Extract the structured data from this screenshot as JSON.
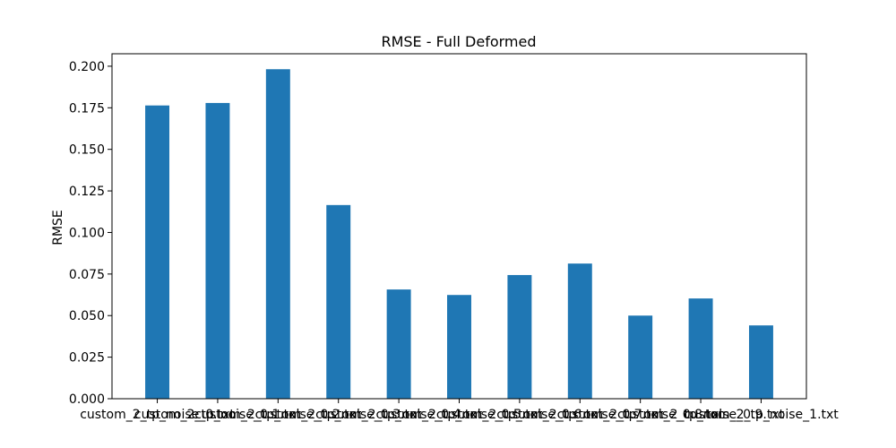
{
  "chart_data": {
    "type": "bar",
    "title": "RMSE - Full Deformed",
    "xlabel": "",
    "ylabel": "RMSE",
    "ylim": [
      0,
      0.2075
    ],
    "yticks": [
      0.0,
      0.025,
      0.05,
      0.075,
      0.1,
      0.125,
      0.15,
      0.175,
      0.2
    ],
    "ytick_labels": [
      "0.000",
      "0.025",
      "0.050",
      "0.075",
      "0.100",
      "0.125",
      "0.150",
      "0.175",
      "0.200"
    ],
    "grid": false,
    "bar_color": "#1f77b4",
    "categories": [
      "custom_2_tp_noise_0.txt",
      "custom_2_tp_noise_0.1.txt",
      "custom_2_tp_noise_0.2.txt",
      "custom_2_tp_noise_0.3.txt",
      "custom_2_tp_noise_0.4.txt",
      "custom_2_tp_noise_0.5.txt",
      "custom_2_tp_noise_0.6.txt",
      "custom_2_tp_noise_0.7.txt",
      "custom_2_tp_noise_0.8.txt",
      "custom_2_tp_noise_0.9.txt",
      "custom_2_tp_noise_1.txt"
    ],
    "values": [
      0.1764,
      0.1779,
      0.1982,
      0.1165,
      0.0657,
      0.0624,
      0.0744,
      0.0813,
      0.05,
      0.0603,
      0.0441
    ]
  }
}
